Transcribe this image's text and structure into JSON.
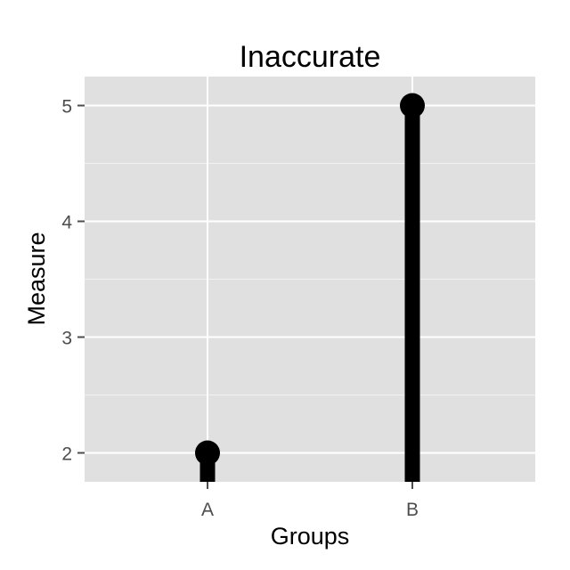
{
  "chart_data": {
    "type": "lollipop",
    "title": "Inaccurate",
    "xlabel": "Groups",
    "ylabel": "Measure",
    "categories": [
      "A",
      "B"
    ],
    "values": [
      2,
      5
    ],
    "baseline": 1.75,
    "ylim": [
      1.75,
      5.25
    ],
    "yticks": [
      2,
      3,
      4,
      5
    ],
    "grid": true,
    "legend": "none",
    "colors": {
      "panel": "#e0e0e0",
      "grid": "#ffffff",
      "mark": "#000000",
      "tick_label": "#4d4d4d"
    }
  }
}
